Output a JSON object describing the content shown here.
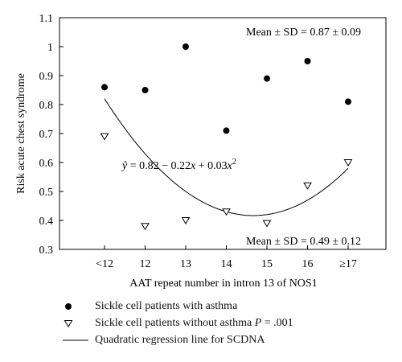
{
  "chart_data": {
    "type": "scatter",
    "categories": [
      "<12",
      "12",
      "13",
      "14",
      "15",
      "16",
      "≥17"
    ],
    "xlabel": "AAT repeat number in intron 13 of NOS1",
    "ylabel": "Risk acute chest syndrome",
    "ylim": [
      0.3,
      1.1
    ],
    "yticks": [
      "0.3",
      "0.4",
      "0.5",
      "0.6",
      "0.7",
      "0.8",
      "0.9",
      "1",
      "1.1"
    ],
    "grid": false,
    "series": [
      {
        "name": "Sickle cell patients with asthma",
        "marker": "filled-circle",
        "values": [
          0.86,
          0.85,
          1.0,
          0.71,
          0.89,
          0.95,
          0.81
        ]
      },
      {
        "name": "Sickle cell patients without asthma",
        "marker": "open-triangle-down",
        "values": [
          0.69,
          0.38,
          0.4,
          0.43,
          0.39,
          0.52,
          0.6
        ]
      }
    ],
    "regression": {
      "name": "Quadratic regression line for SCDNA",
      "a": 0.82,
      "b": -0.22,
      "c": 0.03,
      "x_origin_category": "<12"
    },
    "annotations": {
      "mean_asthma": "Mean ± SD = 0.87 ± 0.09",
      "mean_no_asthma": "Mean ± SD = 0.49 ± 0.12",
      "equation_prefix": " = 0.82 − 0.22",
      "equation_mid": " + 0.03",
      "equation_sup": "2"
    }
  },
  "legend": {
    "asthma_label": "Sickle cell patients with asthma",
    "no_asthma_label": "Sickle cell patients without asthma ",
    "p_label": "P",
    "p_value": " = .001",
    "regression_label": "Quadratic regression line for SCDNA"
  }
}
